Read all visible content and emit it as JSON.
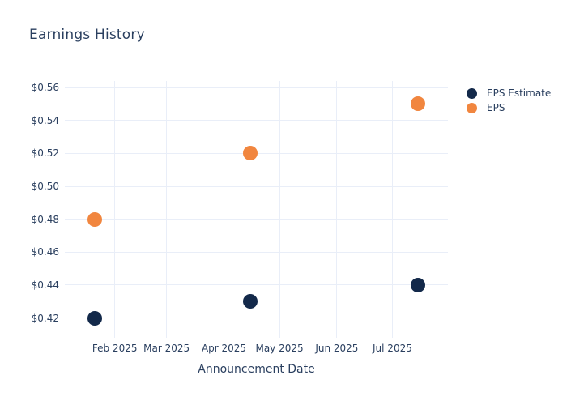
{
  "chart_data": {
    "type": "scatter",
    "title": "Earnings History",
    "xlabel": "Announcement Date",
    "ylabel": "",
    "x_ticks": [
      {
        "label": "Feb 2025",
        "date": "2025-02-01"
      },
      {
        "label": "Mar 2025",
        "date": "2025-03-01"
      },
      {
        "label": "Apr 2025",
        "date": "2025-04-01"
      },
      {
        "label": "May 2025",
        "date": "2025-05-01"
      },
      {
        "label": "Jun 2025",
        "date": "2025-06-01"
      },
      {
        "label": "Jul 2025",
        "date": "2025-07-01"
      }
    ],
    "y_ticks": [
      {
        "label": "$0.56",
        "value": 0.56
      },
      {
        "label": "$0.54",
        "value": 0.54
      },
      {
        "label": "$0.52",
        "value": 0.52
      },
      {
        "label": "$0.50",
        "value": 0.5
      },
      {
        "label": "$0.48",
        "value": 0.48
      },
      {
        "label": "$0.46",
        "value": 0.46
      },
      {
        "label": "$0.44",
        "value": 0.44
      },
      {
        "label": "$0.42",
        "value": 0.42
      }
    ],
    "xlim": [
      "2025-01-05",
      "2025-07-31"
    ],
    "ylim": [
      0.408,
      0.564
    ],
    "grid": true,
    "legend_position": "right",
    "marker_size": 18,
    "legend_marker_size": 13,
    "series": [
      {
        "name": "EPS Estimate",
        "color": "#13294a",
        "x": [
          "2025-01-21",
          "2025-04-15",
          "2025-07-15"
        ],
        "y": [
          0.42,
          0.43,
          0.44
        ]
      },
      {
        "name": "EPS",
        "color": "#f1863f",
        "x": [
          "2025-01-21",
          "2025-04-15",
          "2025-07-15"
        ],
        "y": [
          0.48,
          0.52,
          0.55
        ]
      }
    ],
    "colors": {
      "background": "#ffffff",
      "text": "#2a3f5f",
      "grid": "#e9eef8"
    }
  }
}
